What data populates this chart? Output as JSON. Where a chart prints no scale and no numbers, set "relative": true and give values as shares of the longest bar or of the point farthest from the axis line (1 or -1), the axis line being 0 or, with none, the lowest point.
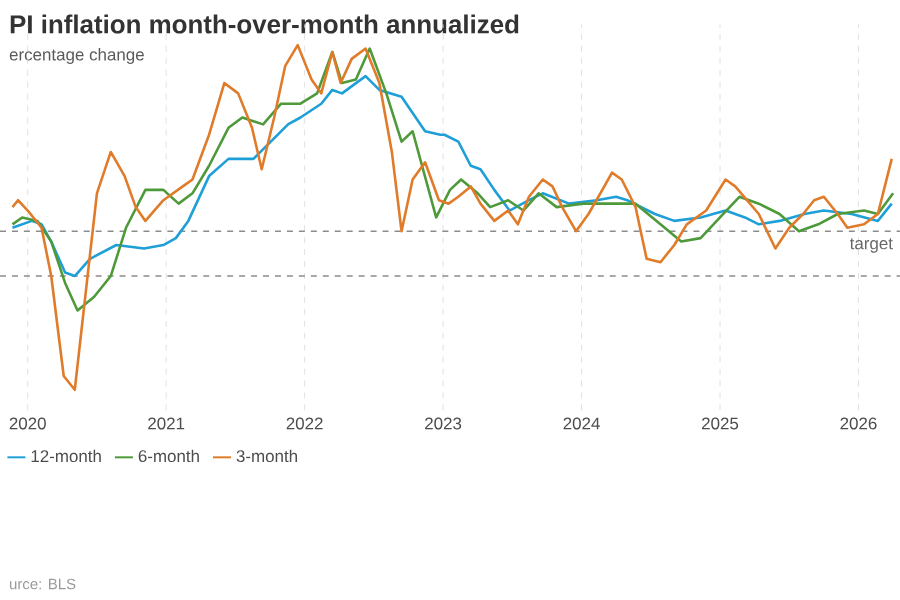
{
  "chart_data": {
    "type": "line",
    "title": "PI inflation month-over-month annualized",
    "subtitle": "ercentage change",
    "annotations": [
      "urce: BLS"
    ],
    "relative": true,
    "xlim": [
      2019.8,
      2026.3
    ],
    "xticks": [
      2020,
      2021,
      2022,
      2023,
      2024,
      2025,
      2026
    ],
    "grid": "x",
    "legend": "bottom",
    "ref_lines": [
      {
        "axis": "y",
        "value": 0.46,
        "label": "target"
      },
      {
        "axis": "y",
        "value": 0.33
      }
    ],
    "series": [
      {
        "name": "12-month",
        "color": "#1f9fd8",
        "x": [
          2019.89,
          2020.03,
          2020.1,
          2020.17,
          2020.27,
          2020.34,
          2020.45,
          2020.64,
          2020.84,
          2020.98,
          2021.07,
          2021.16,
          2021.31,
          2021.45,
          2021.63,
          2021.73,
          2021.88,
          2021.97,
          2022.12,
          2022.2,
          2022.27,
          2022.44,
          2022.54,
          2022.7,
          2022.87,
          2022.98,
          2023.01,
          2023.11,
          2023.2,
          2023.27,
          2023.37,
          2023.48,
          2023.62,
          2023.72,
          2023.91,
          2024.11,
          2024.25,
          2024.33,
          2024.53,
          2024.67,
          2024.86,
          2025.04,
          2025.18,
          2025.28,
          2025.43,
          2025.61,
          2025.75,
          2025.95,
          2026.14,
          2026.24
        ],
        "values": [
          0.47,
          0.49,
          0.48,
          0.43,
          0.34,
          0.33,
          0.38,
          0.42,
          0.41,
          0.42,
          0.44,
          0.49,
          0.62,
          0.67,
          0.67,
          0.71,
          0.77,
          0.79,
          0.83,
          0.87,
          0.86,
          0.91,
          0.87,
          0.85,
          0.75,
          0.74,
          0.74,
          0.72,
          0.65,
          0.64,
          0.58,
          0.52,
          0.55,
          0.57,
          0.54,
          0.55,
          0.56,
          0.55,
          0.51,
          0.49,
          0.5,
          0.52,
          0.5,
          0.48,
          0.49,
          0.51,
          0.52,
          0.51,
          0.49,
          0.54
        ]
      },
      {
        "name": "6-month",
        "color": "#4e9a3a",
        "x": [
          2019.89,
          2019.96,
          2020.07,
          2020.17,
          2020.27,
          2020.36,
          2020.48,
          2020.6,
          2020.71,
          2020.85,
          2020.98,
          2021.09,
          2021.19,
          2021.31,
          2021.45,
          2021.55,
          2021.7,
          2021.83,
          2021.97,
          2022.09,
          2022.2,
          2022.27,
          2022.37,
          2022.47,
          2022.59,
          2022.7,
          2022.78,
          2022.95,
          2023.05,
          2023.13,
          2023.25,
          2023.34,
          2023.47,
          2023.58,
          2023.69,
          2023.82,
          2024.01,
          2024.19,
          2024.39,
          2024.57,
          2024.72,
          2024.86,
          2025.0,
          2025.14,
          2025.28,
          2025.43,
          2025.57,
          2025.71,
          2025.85,
          2026.04,
          2026.14,
          2026.25
        ],
        "values": [
          0.48,
          0.5,
          0.49,
          0.43,
          0.31,
          0.23,
          0.27,
          0.33,
          0.47,
          0.58,
          0.58,
          0.54,
          0.57,
          0.65,
          0.76,
          0.79,
          0.77,
          0.83,
          0.83,
          0.86,
          0.98,
          0.89,
          0.9,
          0.99,
          0.86,
          0.72,
          0.75,
          0.5,
          0.58,
          0.61,
          0.57,
          0.53,
          0.55,
          0.52,
          0.57,
          0.53,
          0.54,
          0.54,
          0.54,
          0.48,
          0.43,
          0.44,
          0.5,
          0.56,
          0.54,
          0.51,
          0.46,
          0.48,
          0.51,
          0.52,
          0.51,
          0.57
        ]
      },
      {
        "name": "3-month",
        "color": "#e07b2a",
        "x": [
          2019.89,
          2019.93,
          2020.0,
          2020.1,
          2020.17,
          2020.26,
          2020.34,
          2020.41,
          2020.5,
          2020.6,
          2020.7,
          2020.78,
          2020.85,
          2020.98,
          2021.12,
          2021.19,
          2021.31,
          2021.42,
          2021.52,
          2021.62,
          2021.69,
          2021.78,
          2021.86,
          2021.95,
          2022.05,
          2022.12,
          2022.2,
          2022.26,
          2022.34,
          2022.44,
          2022.54,
          2022.63,
          2022.7,
          2022.78,
          2022.87,
          2022.97,
          2023.04,
          2023.11,
          2023.2,
          2023.27,
          2023.37,
          2023.47,
          2023.54,
          2023.62,
          2023.72,
          2023.79,
          2023.86,
          2023.96,
          2024.05,
          2024.15,
          2024.22,
          2024.29,
          2024.39,
          2024.47,
          2024.57,
          2024.67,
          2024.76,
          2024.9,
          2025.04,
          2025.11,
          2025.28,
          2025.4,
          2025.5,
          2025.6,
          2025.68,
          2025.75,
          2025.85,
          2025.92,
          2026.04,
          2026.14,
          2026.24
        ],
        "values": [
          0.53,
          0.55,
          0.52,
          0.47,
          0.33,
          0.04,
          0,
          0.25,
          0.57,
          0.69,
          0.62,
          0.53,
          0.49,
          0.55,
          0.59,
          0.61,
          0.74,
          0.89,
          0.86,
          0.76,
          0.64,
          0.79,
          0.94,
          1.0,
          0.9,
          0.86,
          0.98,
          0.89,
          0.96,
          0.99,
          0.89,
          0.69,
          0.46,
          0.61,
          0.66,
          0.55,
          0.54,
          0.56,
          0.59,
          0.54,
          0.49,
          0.52,
          0.48,
          0.56,
          0.61,
          0.59,
          0.53,
          0.46,
          0.51,
          0.58,
          0.63,
          0.61,
          0.53,
          0.38,
          0.37,
          0.42,
          0.48,
          0.52,
          0.61,
          0.59,
          0.51,
          0.41,
          0.47,
          0.51,
          0.55,
          0.56,
          0.51,
          0.47,
          0.48,
          0.51,
          0.67
        ]
      }
    ]
  }
}
